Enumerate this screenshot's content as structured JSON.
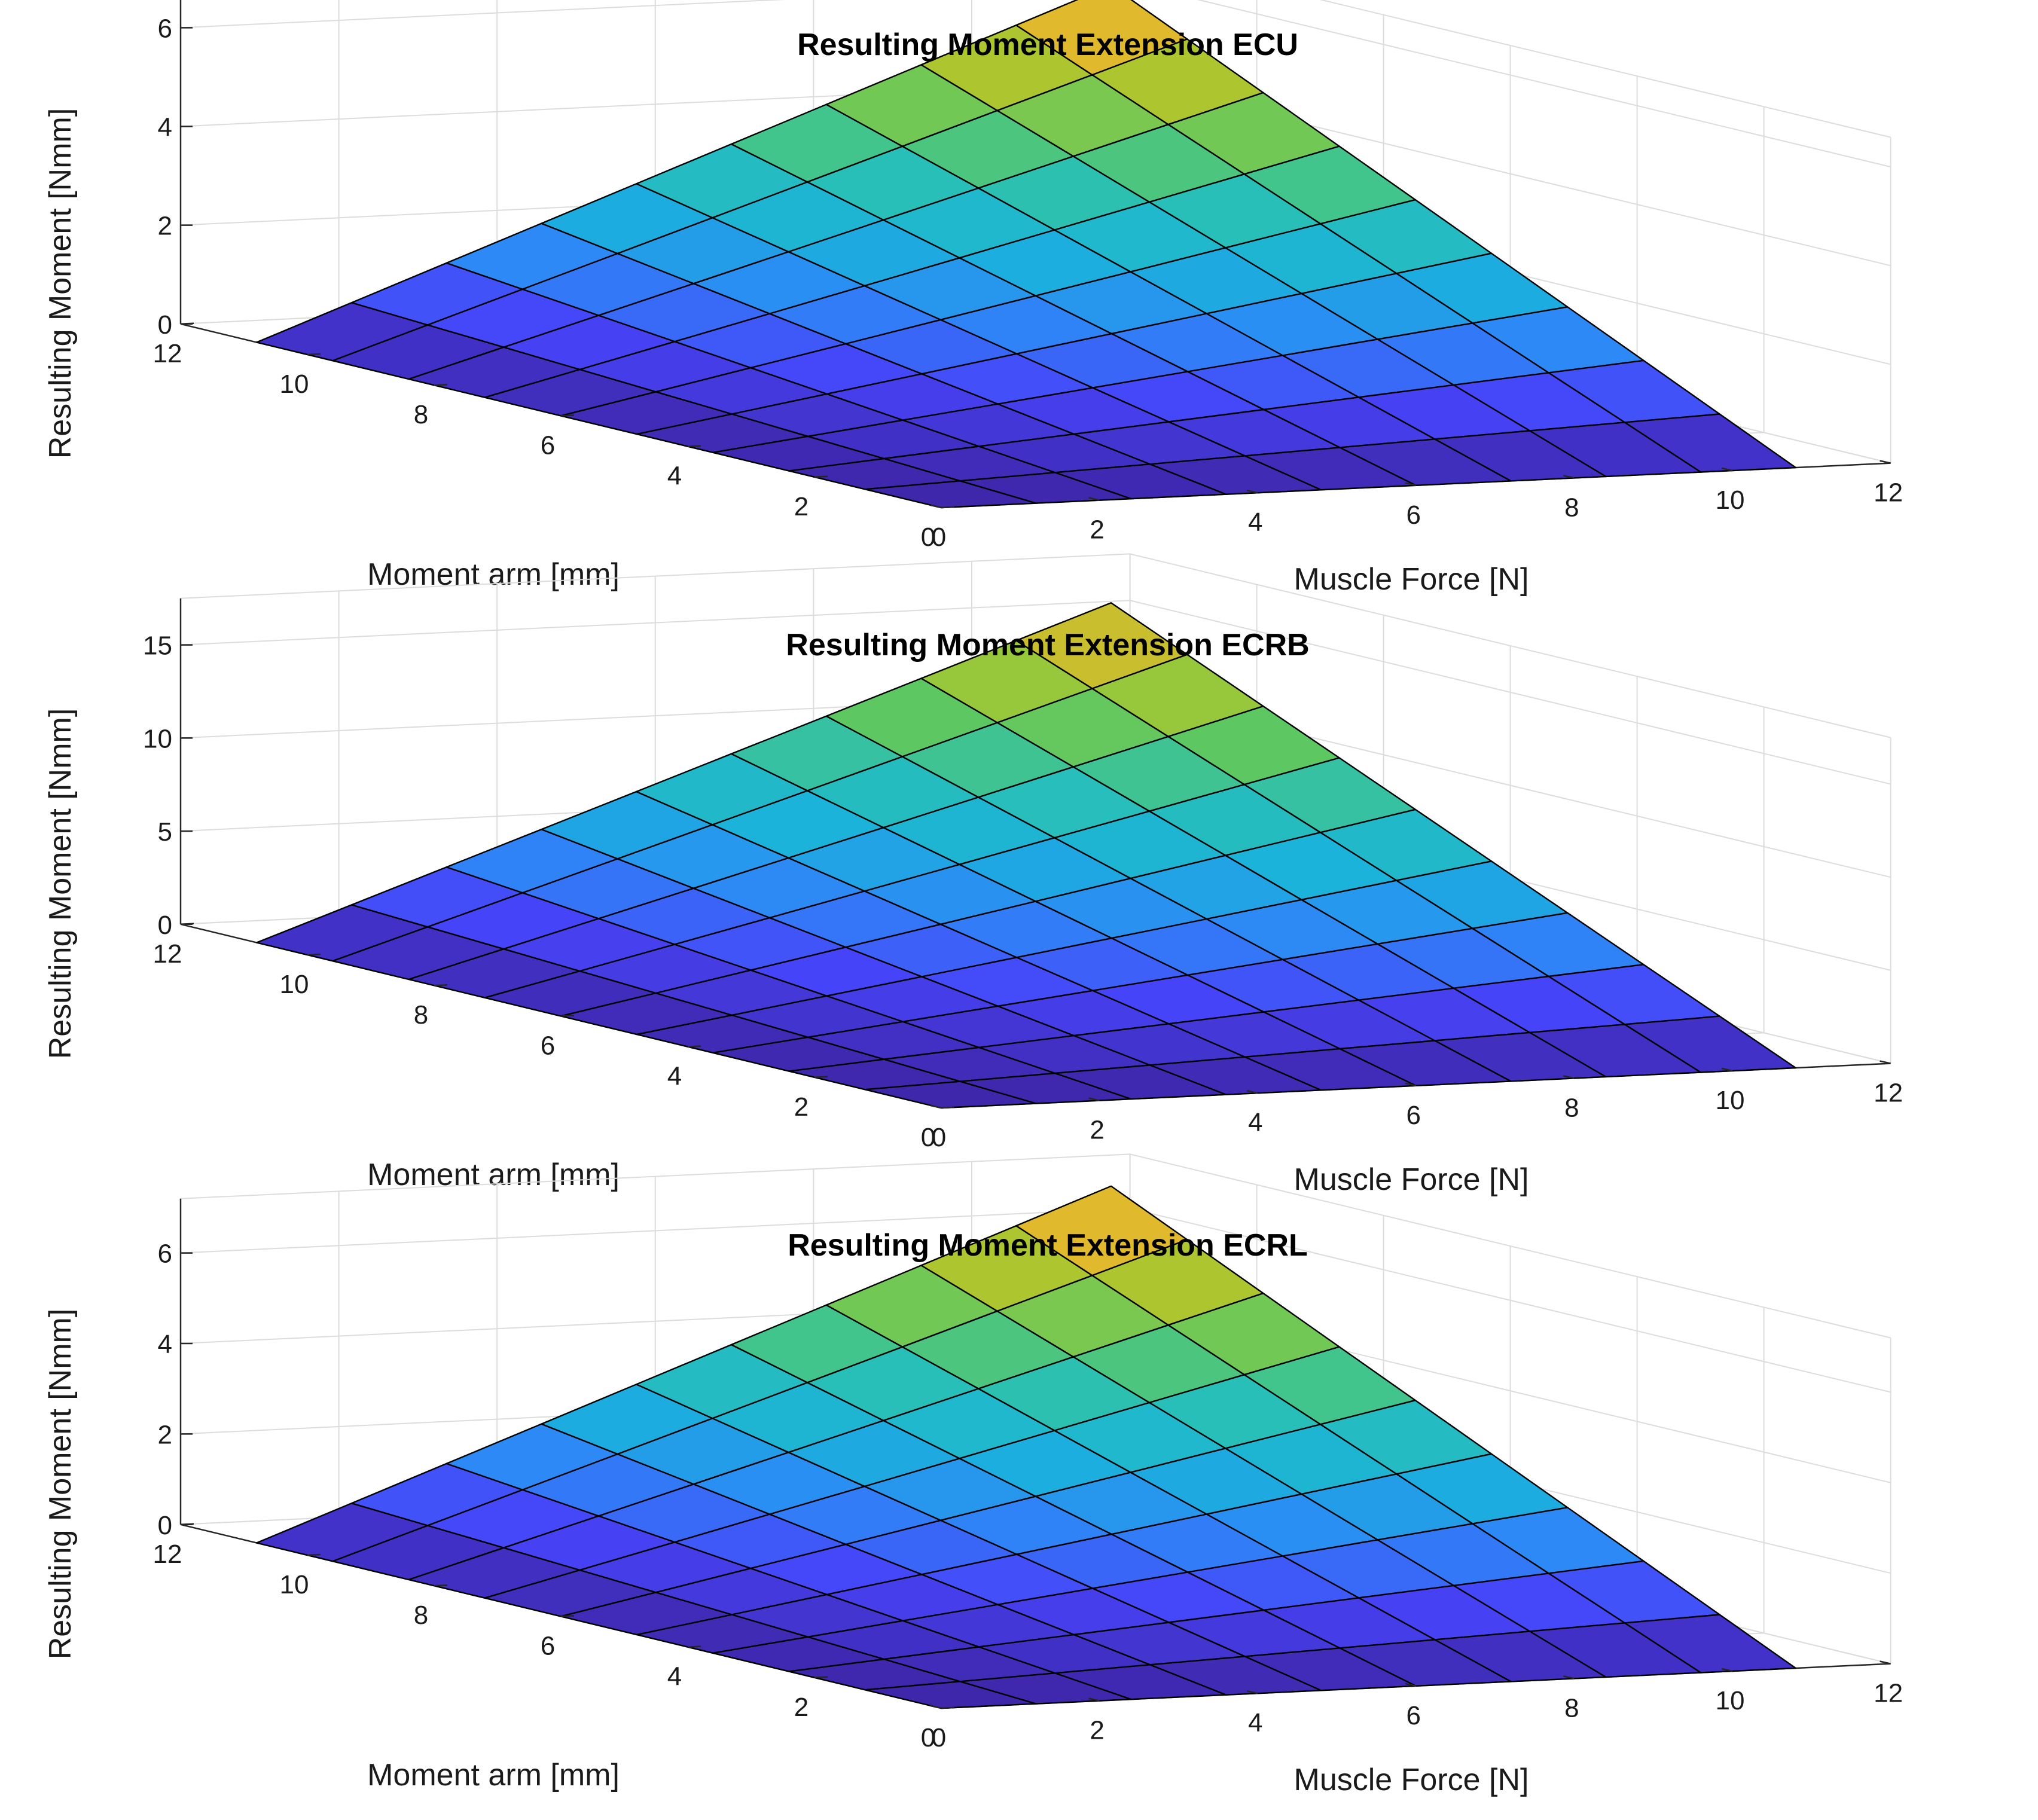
{
  "colors": {
    "background": "#ffffff",
    "grid": "#dcdcdc",
    "axis": "#262626",
    "edge": "#000000",
    "colormap": [
      "#3e26a8",
      "#4743f8",
      "#2e87f7",
      "#1ab2dc",
      "#29c0b6",
      "#5cc863",
      "#a6c831",
      "#e4b82c",
      "#f6d42f"
    ]
  },
  "chart_data": [
    {
      "type": "surface",
      "title": "Resulting Moment Extension ECU",
      "xlabel": "Muscle Force [N]",
      "ylabel": "Moment arm [mm]",
      "zlabel": "Resulting Moment [Nmm]",
      "x_ticks": [
        "0",
        "2",
        "4",
        "6",
        "8",
        "10",
        "12"
      ],
      "y_ticks": [
        "0",
        "2",
        "4",
        "6",
        "8",
        "10",
        "12"
      ],
      "z_ticks": [
        "0",
        "2",
        "4",
        "6"
      ],
      "xlim": [
        0,
        12
      ],
      "ylim": [
        0,
        12
      ],
      "zlim": [
        0,
        6.6
      ],
      "x": [
        0,
        1.2,
        2.4,
        3.6,
        4.8,
        6.0,
        7.2,
        8.4,
        9.6,
        10.8
      ],
      "y": [
        0,
        1.2,
        2.4,
        3.6,
        4.8,
        6.0,
        7.2,
        8.4,
        9.6,
        10.8
      ],
      "formula": "z = x * y * 0.055",
      "z_scale": 0.055
    },
    {
      "type": "surface",
      "title": "Resulting Moment Extension ECRB",
      "xlabel": "Muscle Force [N]",
      "ylabel": "Moment arm [mm]",
      "zlabel": "Resulting Moment [Nmm]",
      "x_ticks": [
        "0",
        "2",
        "4",
        "6",
        "8",
        "10",
        "12"
      ],
      "y_ticks": [
        "0",
        "2",
        "4",
        "6",
        "8",
        "10",
        "12"
      ],
      "z_ticks": [
        "0",
        "5",
        "10",
        "15"
      ],
      "xlim": [
        0,
        12
      ],
      "ylim": [
        0,
        12
      ],
      "zlim": [
        0,
        17.5
      ],
      "x": [
        0,
        1.2,
        2.4,
        3.6,
        4.8,
        6.0,
        7.2,
        8.4,
        9.6,
        10.8
      ],
      "y": [
        0,
        1.2,
        2.4,
        3.6,
        4.8,
        6.0,
        7.2,
        8.4,
        9.6,
        10.8
      ],
      "formula": "z = x * y * 0.138",
      "z_scale": 0.138
    },
    {
      "type": "surface",
      "title": "Resulting Moment Extension ECRL",
      "xlabel": "Muscle Force [N]",
      "ylabel": "Moment arm [mm]",
      "zlabel": "Resulting Moment [Nmm]",
      "x_ticks": [
        "0",
        "2",
        "4",
        "6",
        "8",
        "10",
        "12"
      ],
      "y_ticks": [
        "0",
        "2",
        "4",
        "6",
        "8",
        "10",
        "12"
      ],
      "z_ticks": [
        "0",
        "2",
        "4",
        "6"
      ],
      "xlim": [
        0,
        12
      ],
      "ylim": [
        0,
        12
      ],
      "zlim": [
        0,
        7.2
      ],
      "x": [
        0,
        1.2,
        2.4,
        3.6,
        4.8,
        6.0,
        7.2,
        8.4,
        9.6,
        10.8
      ],
      "y": [
        0,
        1.2,
        2.4,
        3.6,
        4.8,
        6.0,
        7.2,
        8.4,
        9.6,
        10.8
      ],
      "formula": "z = x * y * 0.06",
      "z_scale": 0.06
    }
  ]
}
